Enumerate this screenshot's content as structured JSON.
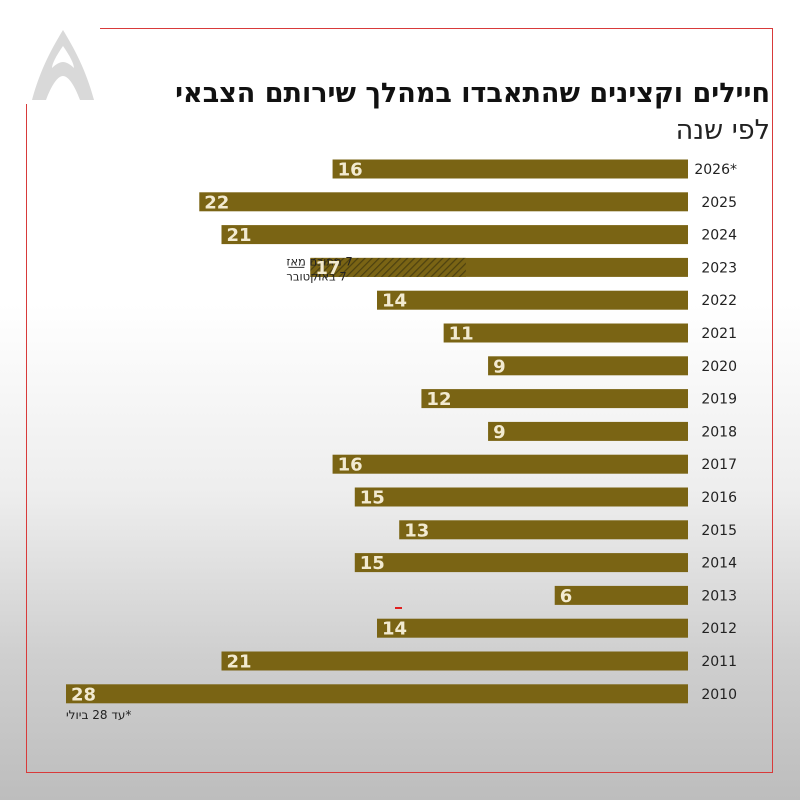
{
  "header": {
    "title": "חיילים וקצינים שהתאבדו במהלך שירותם הצבאי",
    "subtitle": "לפי שנה"
  },
  "colors": {
    "bar": "#7a6414",
    "label": "#f2ead0",
    "frame": "#d83a3a",
    "hatch": "#4e4210"
  },
  "chart_data": {
    "type": "bar",
    "orientation": "horizontal",
    "categories": [
      "2026*",
      "2025",
      "2024",
      "2023",
      "2022",
      "2021",
      "2020",
      "2019",
      "2018",
      "2017",
      "2016",
      "2015",
      "2014",
      "2013",
      "2012",
      "2011",
      "2010"
    ],
    "values": [
      16,
      22,
      21,
      17,
      14,
      11,
      9,
      12,
      9,
      16,
      15,
      13,
      15,
      6,
      14,
      21,
      28
    ],
    "annotation": {
      "category": "2023",
      "value": 7,
      "text_line1": "7 מתוכם מאז",
      "text_line2": "7 באוקטובר"
    },
    "footnote": "*עד 28 ביולי",
    "xlim": [
      0,
      28
    ],
    "bar_direction": "right-to-left"
  }
}
